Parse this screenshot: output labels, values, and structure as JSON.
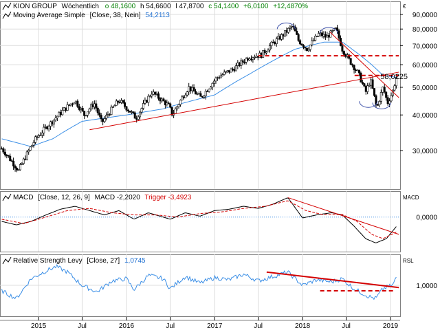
{
  "colors": {
    "background": "#ffffff",
    "panel_border": "#808080",
    "grid": "#dcdcdc",
    "candle_up": "#ffffff",
    "candle_down": "#000000",
    "moving_average": "#3a8ee6",
    "trend": "#d40000",
    "macd_line": "#000000",
    "macd_trigger": "#d40000",
    "zero_line": "#3a8ee6",
    "rsl": "#3a8ee6",
    "header_green": "#008000",
    "header_blue": "#1f6fd0"
  },
  "header": {
    "company": "KION GROUP",
    "period": "Wöchentlich",
    "o": "o 48,1600",
    "h": "h 54,6600",
    "l": "l 47,8700",
    "c": "c 54,1400",
    "change": "+6,0100",
    "change_pct": "+12,4870%"
  },
  "currency_symbol": "€",
  "chart_data": [
    {
      "type": "candlestick",
      "panel": "price",
      "legend": {
        "indicator_label": "Moving Average Simple",
        "indicator_params": "[Close, 38, Nein]",
        "indicator_value": "54,2113"
      },
      "y_scale": "log",
      "ylim": [
        22,
        100
      ],
      "y_ticks": [
        30,
        40,
        50,
        60,
        70,
        80,
        90
      ],
      "y_tick_labels": [
        "30,0000",
        "40,0000",
        "50,0000",
        "60,0000",
        "70,0000",
        "80,0000",
        "90,0000"
      ],
      "x_range": [
        "2014-07-25",
        "2019-02-10"
      ],
      "x_ticks": [
        "2015-01-01",
        "2015-07-01",
        "2016-01-01",
        "2016-07-01",
        "2017-01-01",
        "2017-07-01",
        "2018-01-01",
        "2018-07-01",
        "2019-01-01"
      ],
      "x_tick_labels": [
        "2015",
        "Jul",
        "2016",
        "Jul",
        "2017",
        "Jul",
        "2018",
        "Jul",
        "2019"
      ],
      "close_path": [
        [
          "2014-08-01",
          30.5
        ],
        [
          "2014-10-10",
          25.5
        ],
        [
          "2014-12-20",
          33.0
        ],
        [
          "2015-02-20",
          37.5
        ],
        [
          "2015-04-20",
          42.0
        ],
        [
          "2015-06-01",
          45.0
        ],
        [
          "2015-07-10",
          40.0
        ],
        [
          "2015-08-20",
          44.0
        ],
        [
          "2015-09-20",
          37.5
        ],
        [
          "2015-12-01",
          45.0
        ],
        [
          "2016-02-10",
          39.0
        ],
        [
          "2016-04-15",
          48.0
        ],
        [
          "2016-06-25",
          43.0
        ],
        [
          "2016-07-10",
          40.0
        ],
        [
          "2016-09-15",
          50.0
        ],
        [
          "2016-11-05",
          46.0
        ],
        [
          "2017-01-10",
          54.0
        ],
        [
          "2017-03-20",
          58.0
        ],
        [
          "2017-05-25",
          64.0
        ],
        [
          "2017-07-15",
          65.0
        ],
        [
          "2017-08-20",
          70.0
        ],
        [
          "2017-10-10",
          76.0
        ],
        [
          "2017-11-20",
          82.0
        ],
        [
          "2017-12-15",
          73.0
        ],
        [
          "2018-01-20",
          68.0
        ],
        [
          "2018-03-10",
          77.0
        ],
        [
          "2018-04-10",
          75.0
        ],
        [
          "2018-05-20",
          80.0
        ],
        [
          "2018-06-15",
          68.0
        ],
        [
          "2018-07-15",
          62.0
        ],
        [
          "2018-08-20",
          56.0
        ],
        [
          "2018-09-20",
          48.0
        ],
        [
          "2018-10-10",
          53.0
        ],
        [
          "2018-11-05",
          42.0
        ],
        [
          "2018-12-01",
          50.0
        ],
        [
          "2018-12-20",
          44.0
        ],
        [
          "2019-01-10",
          48.2
        ],
        [
          "2019-01-25",
          54.14
        ]
      ],
      "moving_average_path": [
        [
          "2014-08-01",
          33.0
        ],
        [
          "2014-12-01",
          31.0
        ],
        [
          "2015-03-01",
          33.0
        ],
        [
          "2015-07-01",
          38.0
        ],
        [
          "2016-01-01",
          40.0
        ],
        [
          "2016-06-01",
          42.0
        ],
        [
          "2016-07-10",
          43.0
        ],
        [
          "2017-01-01",
          47.0
        ],
        [
          "2017-06-01",
          56.0
        ],
        [
          "2017-09-01",
          62.0
        ],
        [
          "2017-12-01",
          68.0
        ],
        [
          "2018-04-01",
          72.0
        ],
        [
          "2018-06-15",
          72.0
        ],
        [
          "2018-08-15",
          66.0
        ],
        [
          "2018-10-15",
          60.0
        ],
        [
          "2018-12-01",
          55.0
        ],
        [
          "2019-01-25",
          54.2113
        ]
      ],
      "trendlines": [
        {
          "style": "solid",
          "points": [
            [
              "2015-08-01",
              35.5
            ],
            [
              "2019-02-05",
              56.5
            ]
          ]
        },
        {
          "style": "solid",
          "points": [
            [
              "2018-04-25",
              78.0
            ],
            [
              "2019-02-05",
              46.0
            ]
          ]
        },
        {
          "style": "dashed",
          "points": [
            [
              "2017-07-01",
              64.5
            ],
            [
              "2019-02-05",
              64.5
            ]
          ]
        },
        {
          "style": "dashed",
          "points": [
            [
              "2018-08-05",
              55.0
            ],
            [
              "2019-02-05",
              55.0
            ]
          ]
        }
      ],
      "arcs": [
        {
          "center": [
            "2017-10-25",
            84.0
          ]
        },
        {
          "center": [
            "2018-04-20",
            81.0
          ]
        },
        {
          "center": [
            "2018-10-01",
            42.5
          ],
          "inverted": true
        },
        {
          "center": [
            "2018-11-25",
            42.0
          ],
          "inverted": true
        }
      ],
      "annotations": [
        {
          "text": "58,0225",
          "at": [
            "2018-11-20",
            53.5
          ]
        }
      ]
    },
    {
      "type": "line",
      "panel": "macd",
      "legend": {
        "label": "MACD",
        "params": "[Close, 12, 26, 9]",
        "macd_text": "MACD -2,2020",
        "trigger_text": "Trigger -3,4923"
      },
      "axis_label": "MACD",
      "ylim": [
        -8,
        6
      ],
      "y_ticks": [
        0
      ],
      "y_tick_labels": [
        "0,0000"
      ],
      "macd_path": [
        [
          "2014-08-01",
          -1.0
        ],
        [
          "2014-10-01",
          -1.8
        ],
        [
          "2014-12-01",
          -1.0
        ],
        [
          "2015-02-01",
          0.5
        ],
        [
          "2015-04-01",
          1.8
        ],
        [
          "2015-06-01",
          2.5
        ],
        [
          "2015-08-01",
          1.5
        ],
        [
          "2015-10-01",
          0.5
        ],
        [
          "2015-12-01",
          1.5
        ],
        [
          "2016-02-01",
          -0.5
        ],
        [
          "2016-04-01",
          1.0
        ],
        [
          "2016-07-01",
          -0.5
        ],
        [
          "2016-09-01",
          1.0
        ],
        [
          "2016-11-01",
          0.2
        ],
        [
          "2017-01-01",
          1.5
        ],
        [
          "2017-03-01",
          1.8
        ],
        [
          "2017-05-01",
          2.5
        ],
        [
          "2017-07-01",
          2.0
        ],
        [
          "2017-09-01",
          3.0
        ],
        [
          "2017-11-01",
          4.5
        ],
        [
          "2018-01-01",
          -0.2
        ],
        [
          "2018-03-01",
          0.5
        ],
        [
          "2018-05-01",
          1.0
        ],
        [
          "2018-06-15",
          0.5
        ],
        [
          "2018-08-01",
          -2.0
        ],
        [
          "2018-09-20",
          -5.0
        ],
        [
          "2018-11-01",
          -6.0
        ],
        [
          "2018-12-15",
          -5.0
        ],
        [
          "2019-01-25",
          -2.202
        ]
      ],
      "trigger_path": [
        [
          "2014-08-01",
          -0.5
        ],
        [
          "2014-11-01",
          -1.5
        ],
        [
          "2015-02-01",
          0.0
        ],
        [
          "2015-05-01",
          1.5
        ],
        [
          "2015-08-01",
          2.0
        ],
        [
          "2015-11-01",
          1.0
        ],
        [
          "2016-02-01",
          0.5
        ],
        [
          "2016-05-01",
          0.5
        ],
        [
          "2016-08-01",
          0.0
        ],
        [
          "2016-11-01",
          0.8
        ],
        [
          "2017-02-01",
          1.2
        ],
        [
          "2017-05-01",
          2.0
        ],
        [
          "2017-08-01",
          2.5
        ],
        [
          "2017-11-01",
          3.8
        ],
        [
          "2018-01-15",
          1.5
        ],
        [
          "2018-04-01",
          0.5
        ],
        [
          "2018-06-15",
          0.6
        ],
        [
          "2018-08-15",
          -1.0
        ],
        [
          "2018-10-15",
          -4.0
        ],
        [
          "2018-12-01",
          -5.0
        ],
        [
          "2019-01-25",
          -3.4923
        ]
      ],
      "trendline": [
        [
          "2017-11-01",
          4.5
        ],
        [
          "2019-02-05",
          -4.0
        ]
      ]
    },
    {
      "type": "line",
      "panel": "rsl",
      "legend": {
        "label": "Relative Strength Levy",
        "params": "[Close, 27]",
        "value": "1,0745"
      },
      "axis_label": "RSL",
      "ylim": [
        0.72,
        1.28
      ],
      "y_ticks": [
        1.0
      ],
      "y_tick_labels": [
        "1,0000"
      ],
      "rsl_path": [
        [
          "2014-08-01",
          0.95
        ],
        [
          "2014-10-01",
          0.88
        ],
        [
          "2014-12-01",
          1.06
        ],
        [
          "2015-02-01",
          1.13
        ],
        [
          "2015-03-15",
          1.17
        ],
        [
          "2015-05-01",
          1.12
        ],
        [
          "2015-07-01",
          1.0
        ],
        [
          "2015-09-01",
          0.94
        ],
        [
          "2015-11-01",
          1.04
        ],
        [
          "2016-01-01",
          1.06
        ],
        [
          "2016-02-01",
          0.96
        ],
        [
          "2016-04-01",
          1.09
        ],
        [
          "2016-06-01",
          1.06
        ],
        [
          "2016-07-01",
          0.97
        ],
        [
          "2016-09-01",
          1.08
        ],
        [
          "2016-11-01",
          1.02
        ],
        [
          "2017-01-01",
          1.07
        ],
        [
          "2017-03-01",
          1.05
        ],
        [
          "2017-05-01",
          1.1
        ],
        [
          "2017-07-01",
          1.04
        ],
        [
          "2017-09-01",
          1.08
        ],
        [
          "2017-11-01",
          1.12
        ],
        [
          "2018-01-01",
          1.0
        ],
        [
          "2018-03-01",
          1.05
        ],
        [
          "2018-05-01",
          1.03
        ],
        [
          "2018-06-15",
          1.06
        ],
        [
          "2018-08-01",
          0.97
        ],
        [
          "2018-10-01",
          0.9
        ],
        [
          "2018-11-01",
          0.88
        ],
        [
          "2018-12-01",
          0.97
        ],
        [
          "2019-01-10",
          1.0
        ],
        [
          "2019-01-25",
          1.0745
        ]
      ],
      "trendlines": [
        {
          "style": "solid",
          "points": [
            [
              "2017-08-05",
              1.12
            ],
            [
              "2019-02-05",
              0.98
            ]
          ]
        },
        {
          "style": "dashed",
          "points": [
            [
              "2018-03-15",
              0.95
            ],
            [
              "2019-01-15",
              0.95
            ]
          ]
        }
      ]
    }
  ]
}
